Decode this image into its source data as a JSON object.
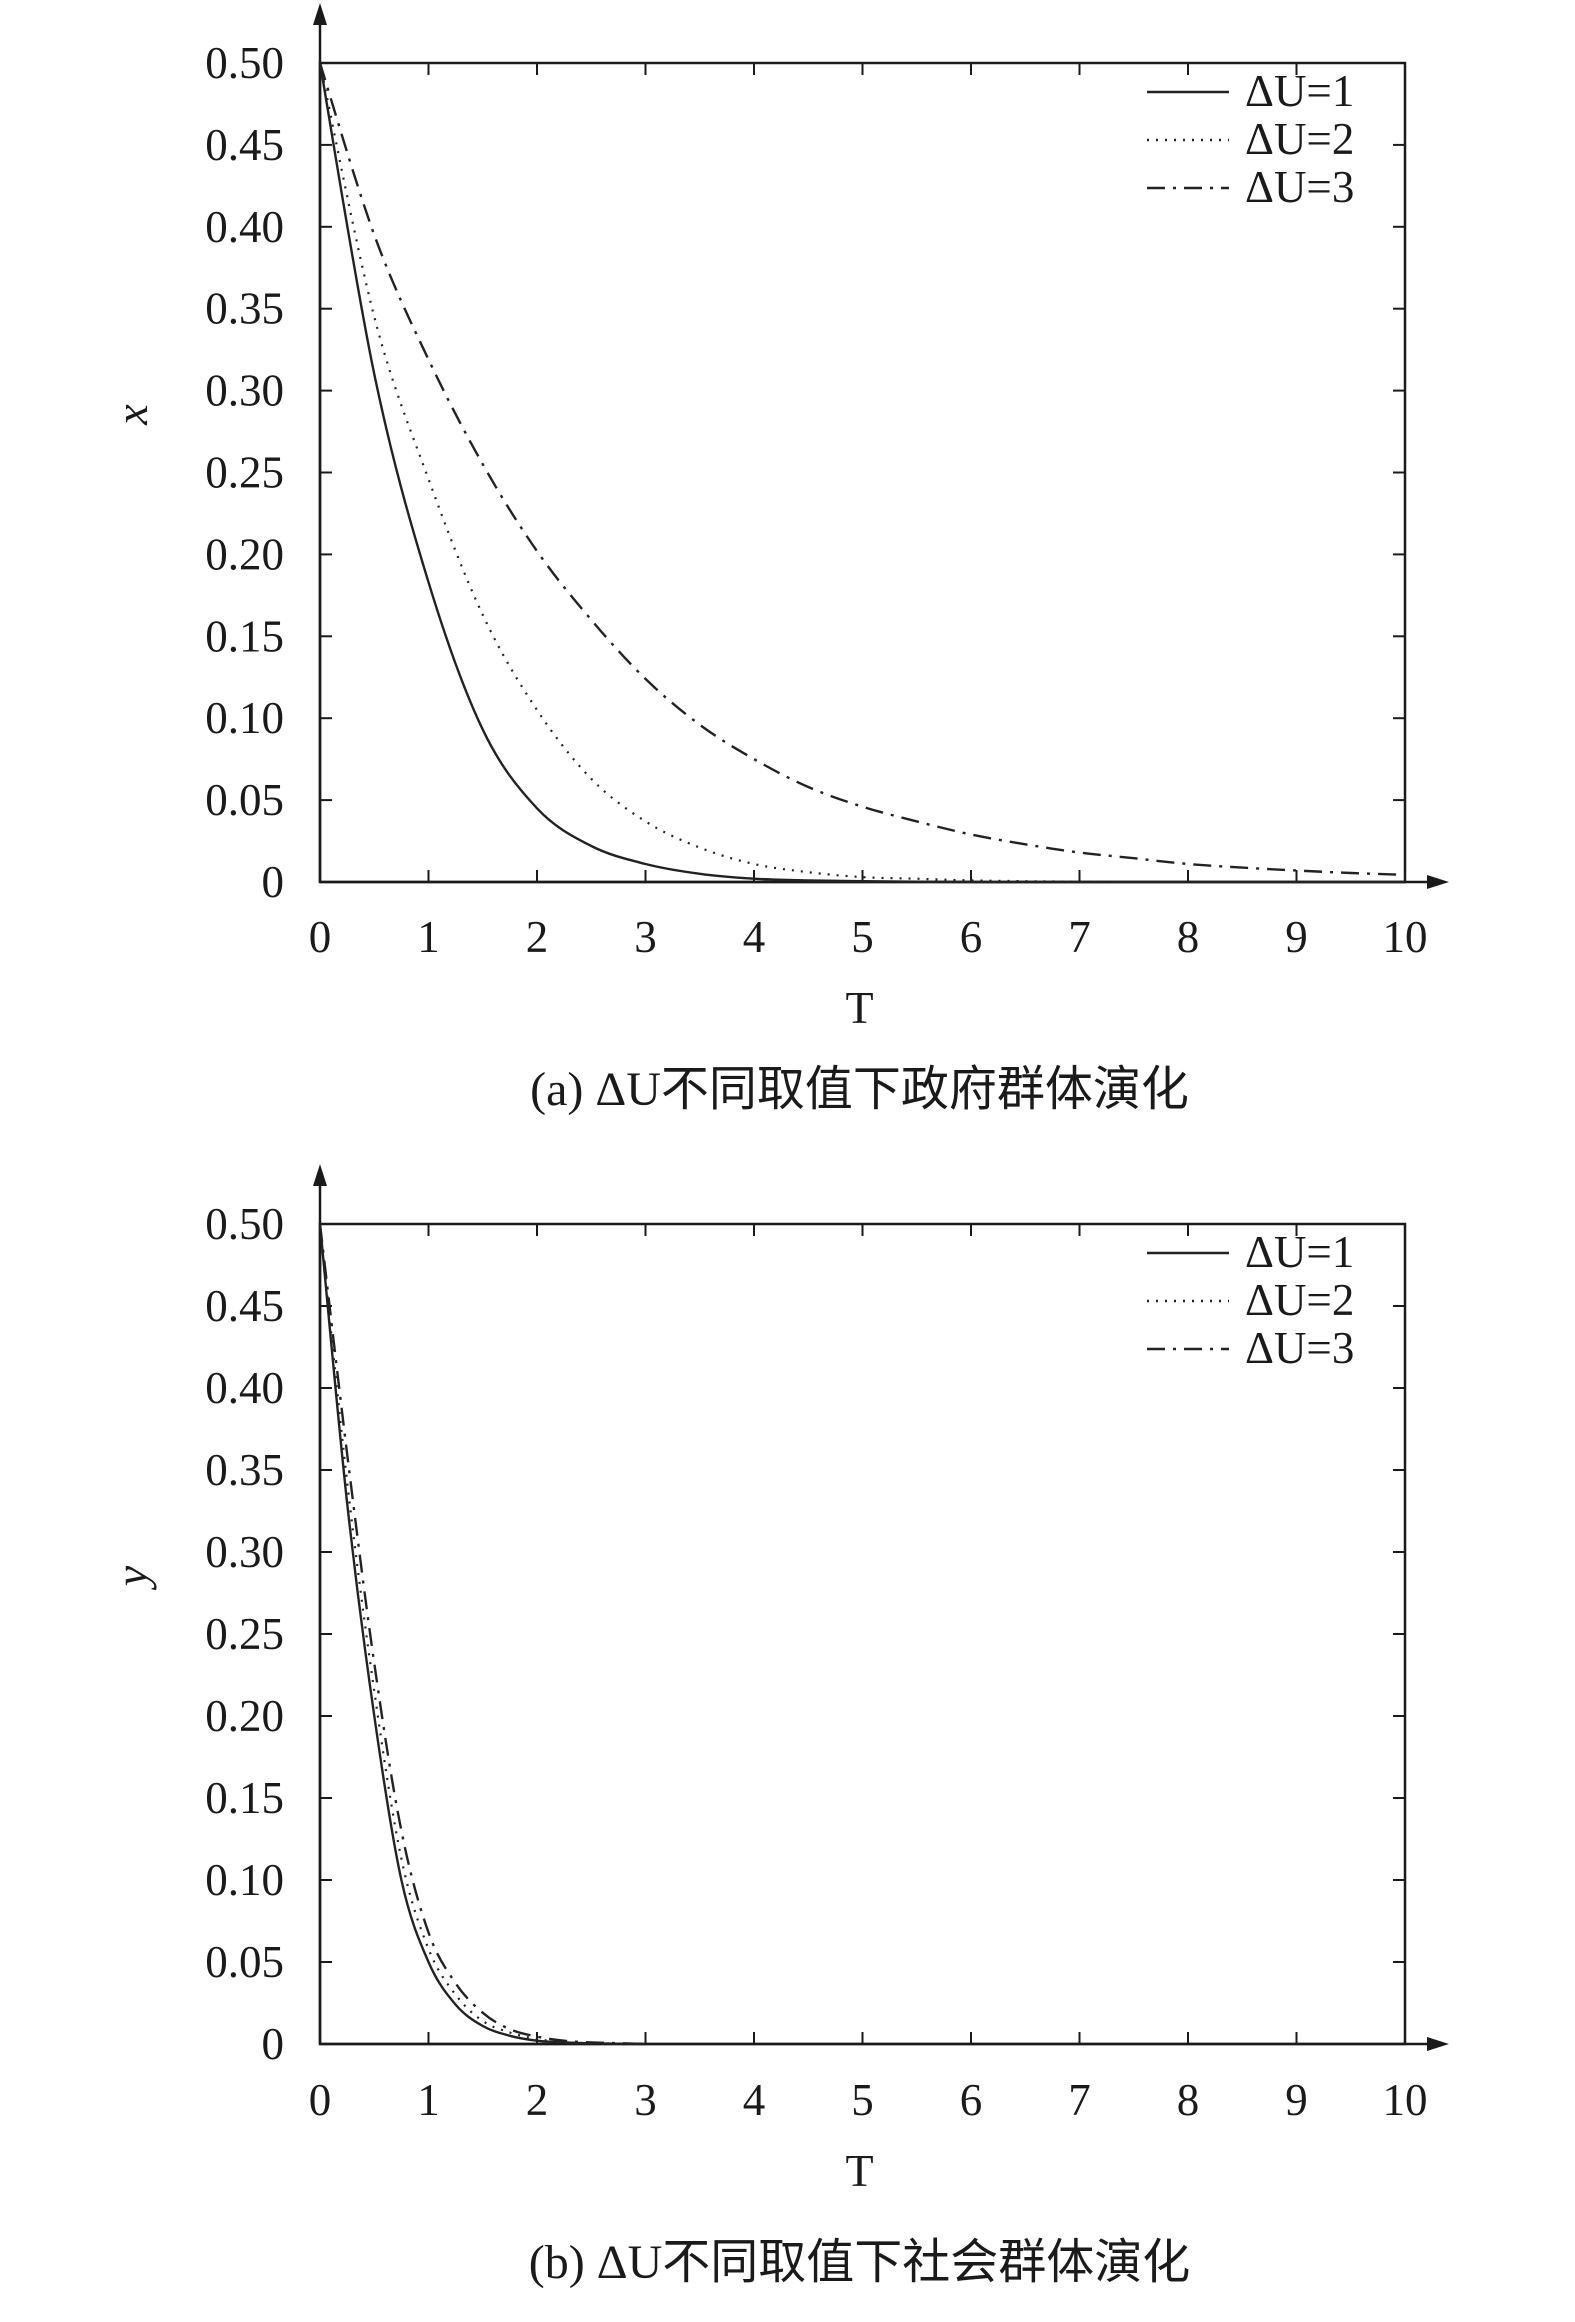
{
  "chart_data": [
    {
      "type": "line",
      "caption": "(a) ΔU不同取值下政府群体演化",
      "xlabel": "T",
      "ylabel": "x",
      "xlim": [
        0,
        10
      ],
      "ylim": [
        0,
        0.5
      ],
      "x_ticks": [
        "0",
        "1",
        "2",
        "3",
        "4",
        "5",
        "6",
        "7",
        "8",
        "9",
        "10"
      ],
      "y_ticks": [
        "0",
        "0.05",
        "0.10",
        "0.15",
        "0.20",
        "0.25",
        "0.30",
        "0.35",
        "0.40",
        "0.45",
        "0.50"
      ],
      "legend_position": "top-right",
      "grid": false,
      "x": [
        0,
        0.5,
        1,
        1.5,
        2,
        2.5,
        3,
        3.5,
        4,
        4.5,
        5,
        5.5,
        6,
        6.5,
        7,
        7.5,
        8,
        8.5,
        9,
        9.5,
        10
      ],
      "series": [
        {
          "name": "ΔU=1",
          "style": "solid",
          "values": [
            0.5,
            0.31,
            0.183,
            0.093,
            0.045,
            0.022,
            0.011,
            0.005,
            0.002,
            0.001,
            0.0005,
            0.0002,
            0,
            0,
            0,
            0,
            0,
            0,
            0,
            0,
            0
          ]
        },
        {
          "name": "ΔU=2",
          "style": "dotted",
          "values": [
            0.5,
            0.345,
            0.246,
            0.163,
            0.105,
            0.063,
            0.037,
            0.021,
            0.011,
            0.006,
            0.003,
            0.002,
            0.001,
            0.0005,
            0.0002,
            0.0001,
            0,
            0,
            0,
            0,
            0
          ]
        },
        {
          "name": "ΔU=3",
          "style": "dashdot",
          "values": [
            0.5,
            0.395,
            0.319,
            0.255,
            0.202,
            0.16,
            0.124,
            0.096,
            0.075,
            0.058,
            0.046,
            0.037,
            0.029,
            0.023,
            0.018,
            0.0145,
            0.011,
            0.0088,
            0.007,
            0.0055,
            0.0044
          ]
        }
      ]
    },
    {
      "type": "line",
      "caption": "(b) ΔU不同取值下社会群体演化",
      "xlabel": "T",
      "ylabel": "y",
      "xlim": [
        0,
        10
      ],
      "ylim": [
        0,
        0.5
      ],
      "x_ticks": [
        "0",
        "1",
        "2",
        "3",
        "4",
        "5",
        "6",
        "7",
        "8",
        "9",
        "10"
      ],
      "y_ticks": [
        "0",
        "0.05",
        "0.10",
        "0.15",
        "0.20",
        "0.25",
        "0.30",
        "0.35",
        "0.40",
        "0.45",
        "0.50"
      ],
      "legend_position": "top-right",
      "grid": false,
      "x": [
        0,
        0.25,
        0.5,
        0.75,
        1,
        1.25,
        1.5,
        1.75,
        2,
        2.25,
        2.5,
        3
      ],
      "series": [
        {
          "name": "ΔU=1",
          "style": "solid",
          "values": [
            0.5,
            0.33,
            0.2,
            0.1,
            0.05,
            0.024,
            0.011,
            0.005,
            0.002,
            0.001,
            0.0004,
            0
          ]
        },
        {
          "name": "ΔU=2",
          "style": "dotted",
          "values": [
            0.5,
            0.343,
            0.215,
            0.113,
            0.058,
            0.03,
            0.014,
            0.007,
            0.003,
            0.0012,
            0.0005,
            0
          ]
        },
        {
          "name": "ΔU=3",
          "style": "dashdot",
          "values": [
            0.5,
            0.36,
            0.232,
            0.13,
            0.068,
            0.037,
            0.019,
            0.009,
            0.0045,
            0.002,
            0.001,
            0
          ]
        }
      ]
    }
  ]
}
